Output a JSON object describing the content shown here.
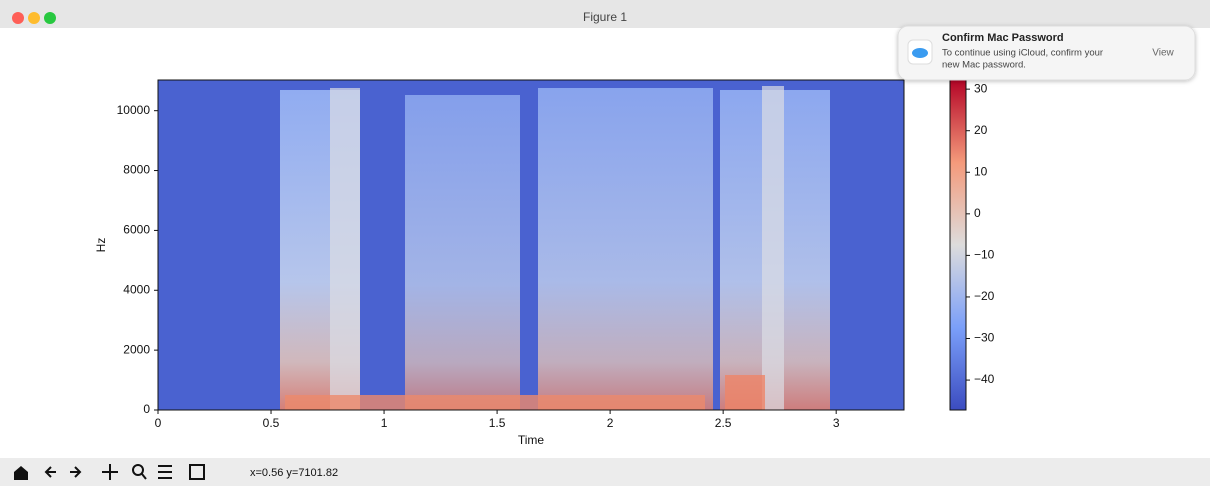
{
  "window": {
    "title": "Figure 1"
  },
  "notification": {
    "title": "Confirm Mac Password",
    "body": [
      "To continue using iCloud, confirm your",
      "new Mac password."
    ],
    "action": "View"
  },
  "toolbar": {
    "status": "x=0.56 y=7101.82"
  },
  "chart_data": {
    "type": "spectrogram",
    "xlabel": "Time",
    "ylabel": "Hz",
    "xlim": [
      0,
      3.3
    ],
    "xticks": [
      0,
      0.5,
      1,
      1.5,
      2,
      2.5,
      3
    ],
    "ylim": [
      0,
      11025
    ],
    "yticks": [
      0,
      2000,
      4000,
      6000,
      8000,
      10000
    ],
    "colorbar": {
      "lim": [
        -47.2,
        32.2
      ],
      "ticks": [
        30,
        20,
        10,
        0,
        {
          "value": -10,
          "label": "−10"
        },
        {
          "value": -20,
          "label": "−20"
        },
        {
          "value": -30,
          "label": "−30"
        },
        {
          "value": -40,
          "label": "−40"
        }
      ]
    }
  }
}
